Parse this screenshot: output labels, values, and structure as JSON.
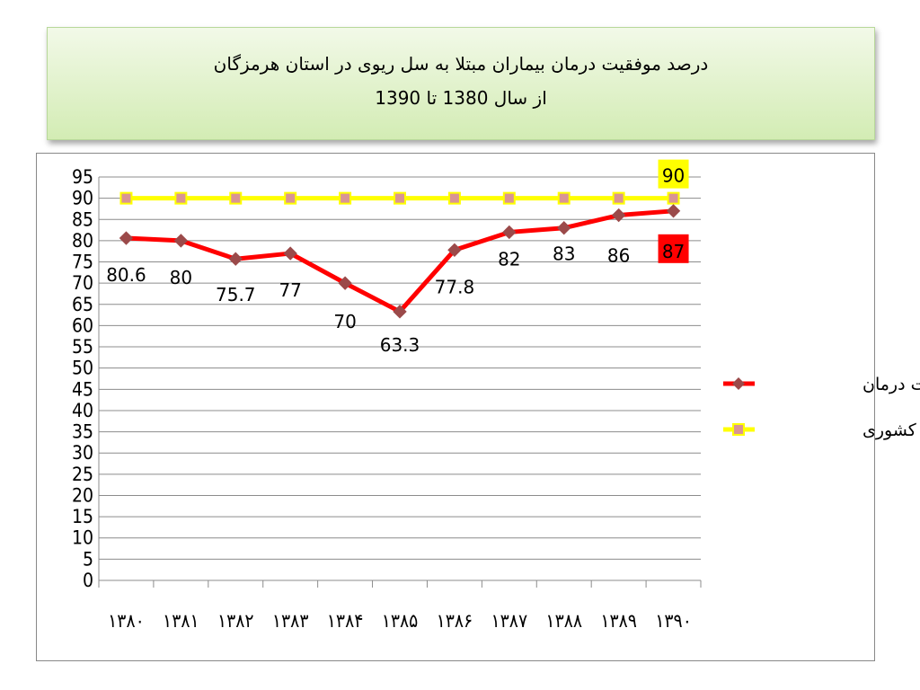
{
  "title": {
    "line1": "درصد موفقیت درمان بیماران مبتلا به سل ریوی در استان هرمزگان",
    "line2": "از سال 1380 تا 1390"
  },
  "colors": {
    "series1": "#ff0000",
    "series1_marker": "#9b4a4a",
    "series2": "#ffff00",
    "series2_marker": "#d99594",
    "highlight_red": "#ff0000",
    "highlight_yellow": "#ffff00"
  },
  "chart_data": {
    "type": "line",
    "categories": [
      "۱۳۸۰",
      "۱۳۸۱",
      "۱۳۸۲",
      "۱۳۸۳",
      "۱۳۸۴",
      "۱۳۸۵",
      "۱۳۸۶",
      "۱۳۸۷",
      "۱۳۸۸",
      "۱۳۸۹",
      "۱۳۹۰"
    ],
    "series": [
      {
        "name": "موفقیت درمان",
        "values": [
          80.6,
          80,
          75.7,
          77,
          70,
          63.3,
          77.8,
          82,
          83,
          86,
          87
        ],
        "labels": [
          "80.6",
          "80",
          "75.7",
          "77",
          "70",
          "63.3",
          "77.8",
          "82",
          "83",
          "86",
          "87"
        ]
      },
      {
        "name": "هدف کشوری",
        "values": [
          90,
          90,
          90,
          90,
          90,
          90,
          90,
          90,
          90,
          90,
          90
        ],
        "labels": [
          "",
          "",
          "",
          "",
          "",
          "",
          "",
          "",
          "",
          "",
          "90"
        ]
      }
    ],
    "ylim": [
      0,
      95
    ],
    "yticks": [
      0,
      5,
      10,
      15,
      20,
      25,
      30,
      35,
      40,
      45,
      50,
      55,
      60,
      65,
      70,
      75,
      80,
      85,
      90,
      95
    ],
    "grid": true,
    "legend": "right"
  }
}
